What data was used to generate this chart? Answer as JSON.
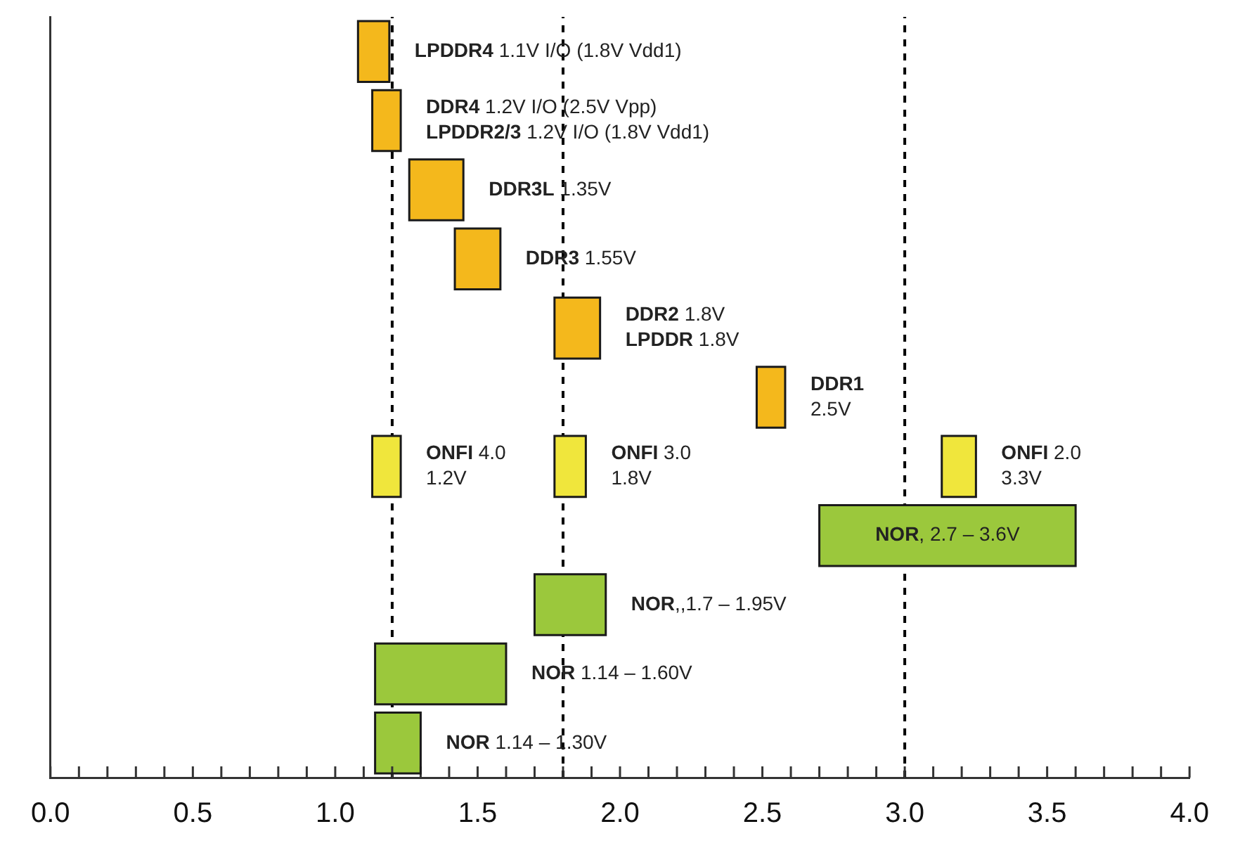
{
  "chart_data": {
    "type": "bar",
    "orientation": "horizontal",
    "categories": [
      null,
      null,
      null,
      null,
      null,
      null,
      null,
      null,
      null,
      null,
      null
    ],
    "series": [
      {
        "color": "#f4b81c",
        "base": [
          1.08,
          1.13,
          1.26,
          1.42,
          1.77,
          2.48,
          null,
          null,
          null,
          null,
          null
        ],
        "values": [
          0.11,
          0.1,
          0.19,
          0.16,
          0.16,
          0.1,
          null,
          null,
          null,
          null,
          null
        ],
        "value_labels": [
          "LPDDR4 1.1V I/O (1.8V Vdd1)",
          "DDR4 1.2V I/O (2.5V Vpp)\nLPDDR2/3 1.2V I/O (1.8V Vdd1)",
          "DDR3L 1.35V",
          "DDR3 1.55V",
          "DDR2 1.8V\nLPDDR 1.8V",
          "DDR1\n2.5V",
          null,
          null,
          null,
          null,
          null
        ]
      },
      {
        "color": "#f0e63c",
        "base": [
          null,
          null,
          null,
          null,
          null,
          null,
          1.13,
          null,
          null,
          null,
          null
        ],
        "values": [
          null,
          null,
          null,
          null,
          null,
          null,
          0.1,
          null,
          null,
          null,
          null
        ],
        "value_labels": [
          null,
          null,
          null,
          null,
          null,
          null,
          "ONFI 4.0\n1.2V",
          null,
          null,
          null,
          null
        ]
      },
      {
        "color": "#f0e63c",
        "base": [
          null,
          null,
          null,
          null,
          null,
          null,
          1.77,
          null,
          null,
          null,
          null
        ],
        "values": [
          null,
          null,
          null,
          null,
          null,
          null,
          0.11,
          null,
          null,
          null,
          null
        ],
        "value_labels": [
          null,
          null,
          null,
          null,
          null,
          null,
          "ONFI 3.0\n1.8V",
          null,
          null,
          null,
          null
        ]
      },
      {
        "color": "#f0e63c",
        "base": [
          null,
          null,
          null,
          null,
          null,
          null,
          3.13,
          null,
          null,
          null,
          null
        ],
        "values": [
          null,
          null,
          null,
          null,
          null,
          null,
          0.12,
          null,
          null,
          null,
          null
        ],
        "value_labels": [
          null,
          null,
          null,
          null,
          null,
          null,
          "ONFI 2.0\n3.3V",
          null,
          null,
          null,
          null
        ]
      },
      {
        "color": "#9bc83c",
        "base": [
          null,
          null,
          null,
          null,
          null,
          null,
          null,
          2.7,
          1.7,
          1.14,
          1.14
        ],
        "values": [
          null,
          null,
          null,
          null,
          null,
          null,
          null,
          0.9,
          0.25,
          0.46,
          0.16
        ],
        "value_labels": [
          null,
          null,
          null,
          null,
          null,
          null,
          null,
          "NOR, 2.7 – 3.6V",
          "NOR,,1.7 – 1.95V",
          "NOR 1.14 – 1.60V",
          "NOR 1.14 – 1.30V"
        ]
      }
    ],
    "xlim": [
      0,
      4
    ],
    "xticks": [
      {
        "value": 0,
        "label": "0.0"
      },
      {
        "value": 0.1,
        "label": null
      },
      {
        "value": 0.2,
        "label": null
      },
      {
        "value": 0.3,
        "label": null
      },
      {
        "value": 0.4,
        "label": null
      },
      {
        "value": 0.5,
        "label": "0.5"
      },
      {
        "value": 0.6,
        "label": null
      },
      {
        "value": 0.7,
        "label": null
      },
      {
        "value": 0.8,
        "label": null
      },
      {
        "value": 0.9,
        "label": null
      },
      {
        "value": 1,
        "label": "1.0"
      },
      {
        "value": 1.1,
        "label": null
      },
      {
        "value": 1.2,
        "label": null
      },
      {
        "value": 1.3,
        "label": null
      },
      {
        "value": 1.4,
        "label": null
      },
      {
        "value": 1.5,
        "label": "1.5"
      },
      {
        "value": 1.6,
        "label": null
      },
      {
        "value": 1.7,
        "label": null
      },
      {
        "value": 1.8,
        "label": null
      },
      {
        "value": 1.9,
        "label": null
      },
      {
        "value": 2,
        "label": "2.0"
      },
      {
        "value": 2.1,
        "label": null
      },
      {
        "value": 2.2,
        "label": null
      },
      {
        "value": 2.3,
        "label": null
      },
      {
        "value": 2.4,
        "label": null
      },
      {
        "value": 2.5,
        "label": "2.5"
      },
      {
        "value": 2.6,
        "label": null
      },
      {
        "value": 2.7,
        "label": null
      },
      {
        "value": 2.8,
        "label": null
      },
      {
        "value": 2.9,
        "label": null
      },
      {
        "value": 3,
        "label": "3.0"
      },
      {
        "value": 3.1,
        "label": null
      },
      {
        "value": 3.2,
        "label": null
      },
      {
        "value": 3.3,
        "label": null
      },
      {
        "value": 3.4,
        "label": null
      },
      {
        "value": 3.5,
        "label": "3.5"
      },
      {
        "value": 3.6,
        "label": null
      },
      {
        "value": 3.7,
        "label": null
      },
      {
        "value": 3.8,
        "label": null
      },
      {
        "value": 3.9,
        "label": null
      },
      {
        "value": 4,
        "label": "4.0"
      }
    ],
    "ref_lines": [
      {
        "axis": "x",
        "value": 1.2,
        "color": "#000000",
        "line_style": "dashed"
      },
      {
        "axis": "x",
        "value": 1.8,
        "color": "#000000",
        "line_style": "dashed"
      },
      {
        "axis": "x",
        "value": 3,
        "color": "#000000",
        "line_style": "dashed"
      }
    ],
    "grid": false,
    "legend": false,
    "tick_labels": "x"
  }
}
